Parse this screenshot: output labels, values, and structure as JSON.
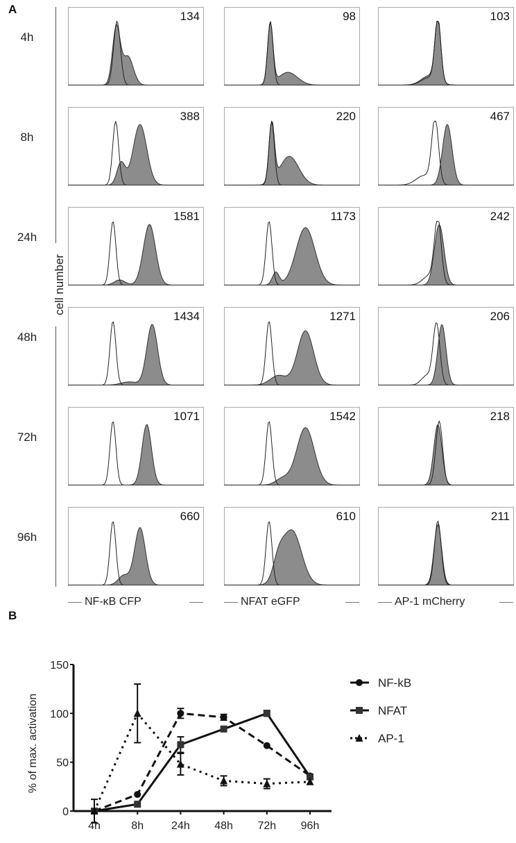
{
  "panel_a": {
    "label": "A",
    "y_axis_label": "cell number",
    "rows": [
      "4h",
      "8h",
      "24h",
      "48h",
      "72h",
      "96h"
    ],
    "columns": [
      "NF-κB CFP",
      "NFAT eGFP",
      "AP-1 mCherry"
    ],
    "values": [
      [
        "134",
        "98",
        "103"
      ],
      [
        "388",
        "220",
        "467"
      ],
      [
        "1581",
        "1173",
        "242"
      ],
      [
        "1434",
        "1271",
        "206"
      ],
      [
        "1071",
        "1542",
        "218"
      ],
      [
        "660",
        "610",
        "211"
      ]
    ],
    "fill_color": "#8c8c8c"
  },
  "chart_data": {
    "type": "line",
    "panel_label": "B",
    "ylabel": "% of max. activation",
    "xlabel": "",
    "categories": [
      "4h",
      "8h",
      "24h",
      "48h",
      "72h",
      "96h"
    ],
    "ylim": [
      0,
      150
    ],
    "yticks": [
      "0",
      "50",
      "100",
      "150"
    ],
    "grid": false,
    "legend_placement": "right",
    "series": [
      {
        "name": "NF-kB",
        "marker": "circle",
        "line": "dashed",
        "values": [
          0,
          17,
          100,
          96,
          67,
          36
        ],
        "err": [
          0,
          0,
          5,
          3,
          0,
          0
        ]
      },
      {
        "name": "NFAT",
        "marker": "square",
        "line": "solid",
        "values": [
          0,
          7,
          68,
          84,
          100,
          35
        ],
        "err": [
          0,
          0,
          8,
          0,
          3,
          0
        ]
      },
      {
        "name": "AP-1",
        "marker": "triangle",
        "line": "dotted",
        "values": [
          0,
          100,
          48,
          31,
          28,
          30
        ],
        "err": [
          12,
          30,
          11,
          5,
          5,
          0
        ]
      }
    ]
  }
}
